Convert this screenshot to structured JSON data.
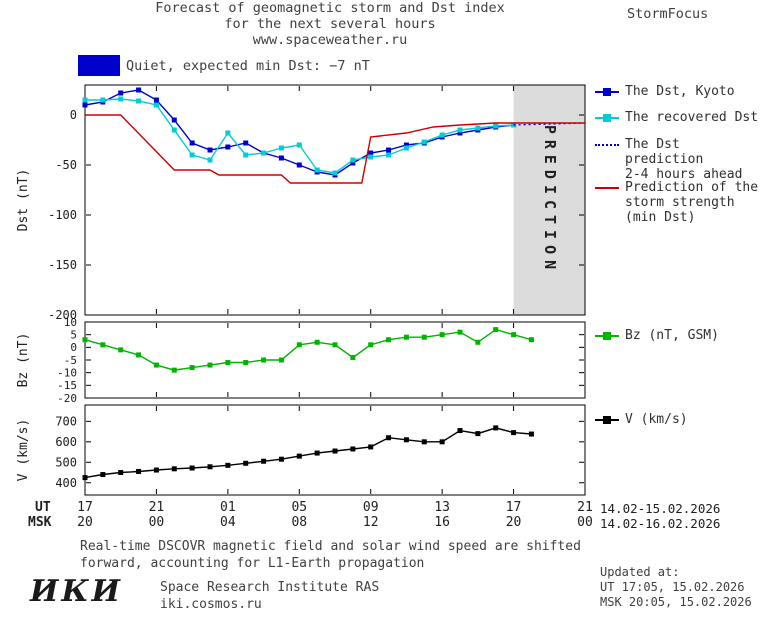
{
  "header": {
    "title_line1": "Forecast of geomagnetic storm and Dst index",
    "title_line2": "for the next several hours",
    "title_line3": "www.spaceweather.ru",
    "brand": "StormFocus"
  },
  "status_banner": {
    "box_color": "#0000cd",
    "text": "Quiet, expected min Dst: −7 nT"
  },
  "legend": {
    "items": [
      {
        "label": "The Dst, Kyoto",
        "color": "#0000cd",
        "marker": "square-line",
        "style": "solid"
      },
      {
        "label": "The recovered Dst",
        "color": "#00cdd4",
        "marker": "square-line",
        "style": "solid"
      },
      {
        "label": "The Dst prediction\n2-4 hours ahead",
        "color": "#0000cd",
        "marker": "line",
        "style": "dotted"
      },
      {
        "label": "Prediction of the\nstorm strength\n(min Dst)",
        "color": "#cd0000",
        "marker": "line",
        "style": "solid"
      },
      {
        "label": "Bz (nT, GSM)",
        "color": "#00b400",
        "marker": "square-line",
        "style": "solid"
      },
      {
        "label": "V (km/s)",
        "color": "#000000",
        "marker": "square-line",
        "style": "solid"
      }
    ]
  },
  "x_axis": {
    "ut_label": "UT",
    "msk_label": "MSK",
    "tick_hours": [
      0,
      4,
      8,
      12,
      16,
      20,
      24,
      28
    ],
    "ut_ticks": [
      "17",
      "21",
      "01",
      "05",
      "09",
      "13",
      "17",
      "21"
    ],
    "msk_ticks": [
      "20",
      "00",
      "04",
      "08",
      "12",
      "16",
      "20",
      "00"
    ],
    "ut_date_range": "14.02-15.02.2026",
    "msk_date_range": "14.02-16.02.2026"
  },
  "prediction_zone": {
    "label": "PREDICTION",
    "fill": "#dcdcdc",
    "text_color": "#b0b0b0"
  },
  "footnote": {
    "line1": "Real-time DSCOVR magnetic field and solar wind speed are shifted",
    "line2": "forward, accounting for L1-Earth propagation"
  },
  "updated": {
    "heading": "Updated at:",
    "ut": "UT  17:05, 15.02.2026",
    "msk": "MSK 20:05, 15.02.2026"
  },
  "footer_logo": {
    "logo_text": "ИКИ",
    "institute": "Space Research Institute RAS",
    "site": "iki.cosmos.ru"
  },
  "chart_data": [
    {
      "type": "line",
      "panel": "dst",
      "title": "Forecast of geomagnetic storm and Dst index for the next several hours",
      "ylabel": "Dst (nT)",
      "ylim": [
        -200,
        30
      ],
      "yticks": [
        0,
        -50,
        -100,
        -150,
        -200
      ],
      "xlim_hours": [
        0,
        28
      ],
      "x_unit": "hours from 17:00 UT 14.02.2026, ticks every 4 h",
      "prediction_zone": {
        "start_hour": 24,
        "end_hour": 28
      },
      "series": [
        {
          "id": "dst-kyoto",
          "name": "The Dst, Kyoto",
          "color": "#0000cd",
          "marker": "square",
          "style": "solid",
          "x": [
            0,
            1,
            2,
            3,
            4,
            5,
            6,
            7,
            8,
            9,
            10,
            11,
            12,
            13,
            14,
            15,
            16,
            17,
            18,
            19,
            20,
            21,
            22,
            23,
            24
          ],
          "values": [
            10,
            13,
            22,
            25,
            15,
            -5,
            -28,
            -35,
            -32,
            -28,
            -38,
            -43,
            -50,
            -57,
            -60,
            -48,
            -38,
            -35,
            -30,
            -28,
            -22,
            -18,
            -15,
            -12,
            -10
          ]
        },
        {
          "id": "dst-recovered",
          "name": "The recovered Dst",
          "color": "#00cdd4",
          "marker": "square",
          "style": "solid",
          "x": [
            0,
            1,
            2,
            3,
            4,
            5,
            6,
            7,
            8,
            9,
            10,
            11,
            12,
            13,
            14,
            15,
            16,
            17,
            18,
            19,
            20,
            21,
            22,
            23,
            24
          ],
          "values": [
            15,
            15,
            16,
            14,
            10,
            -15,
            -40,
            -45,
            -18,
            -40,
            -38,
            -33,
            -30,
            -55,
            -58,
            -45,
            -42,
            -40,
            -33,
            -27,
            -20,
            -15,
            -13,
            -11,
            -10
          ]
        },
        {
          "id": "dst-prediction",
          "name": "The Dst prediction 2-4 hours ahead",
          "color": "#0000cd",
          "marker": "none",
          "style": "dotted",
          "x": [
            24,
            26,
            28
          ],
          "values": [
            -10,
            -9,
            -8
          ]
        },
        {
          "id": "storm-strength-prediction",
          "name": "Prediction of the storm strength (min Dst)",
          "color": "#cd0000",
          "marker": "none",
          "style": "solid",
          "x": [
            0,
            2,
            5,
            7,
            7.5,
            11,
            11.5,
            15.5,
            16,
            18,
            19.5,
            21,
            23,
            28
          ],
          "values": [
            0,
            0,
            -55,
            -55,
            -60,
            -60,
            -68,
            -68,
            -22,
            -18,
            -12,
            -10,
            -8,
            -8
          ]
        }
      ]
    },
    {
      "type": "line",
      "panel": "bz",
      "ylabel": "Bz (nT)",
      "ylim": [
        -20,
        10
      ],
      "yticks": [
        10,
        5,
        0,
        -5,
        -10,
        -15,
        -20
      ],
      "xlim_hours": [
        0,
        28
      ],
      "series": [
        {
          "id": "bz-gsm",
          "name": "Bz (nT, GSM)",
          "color": "#00b400",
          "marker": "square",
          "style": "solid",
          "x": [
            0,
            1,
            2,
            3,
            4,
            5,
            6,
            7,
            8,
            9,
            10,
            11,
            12,
            13,
            14,
            15,
            16,
            17,
            18,
            19,
            20,
            21,
            22,
            23,
            24,
            25
          ],
          "values": [
            3,
            1,
            -1,
            -3,
            -7,
            -9,
            -8,
            -7,
            -6,
            -6,
            -5,
            -5,
            1,
            2,
            1,
            -4,
            1,
            3,
            4,
            4,
            5,
            6,
            2,
            7,
            5,
            3
          ]
        }
      ]
    },
    {
      "type": "line",
      "panel": "v",
      "ylabel": "V (km/s)",
      "ylim": [
        340,
        780
      ],
      "yticks": [
        700,
        600,
        500,
        400
      ],
      "xlim_hours": [
        0,
        28
      ],
      "series": [
        {
          "id": "solar-wind-speed",
          "name": "V (km/s)",
          "color": "#000000",
          "marker": "square",
          "style": "solid",
          "x": [
            0,
            1,
            2,
            3,
            4,
            5,
            6,
            7,
            8,
            9,
            10,
            11,
            12,
            13,
            14,
            15,
            16,
            17,
            18,
            19,
            20,
            21,
            22,
            23,
            24,
            25
          ],
          "values": [
            425,
            440,
            450,
            455,
            462,
            468,
            472,
            478,
            485,
            495,
            505,
            515,
            530,
            545,
            555,
            565,
            575,
            620,
            610,
            600,
            600,
            655,
            640,
            668,
            645,
            638
          ]
        }
      ]
    }
  ]
}
